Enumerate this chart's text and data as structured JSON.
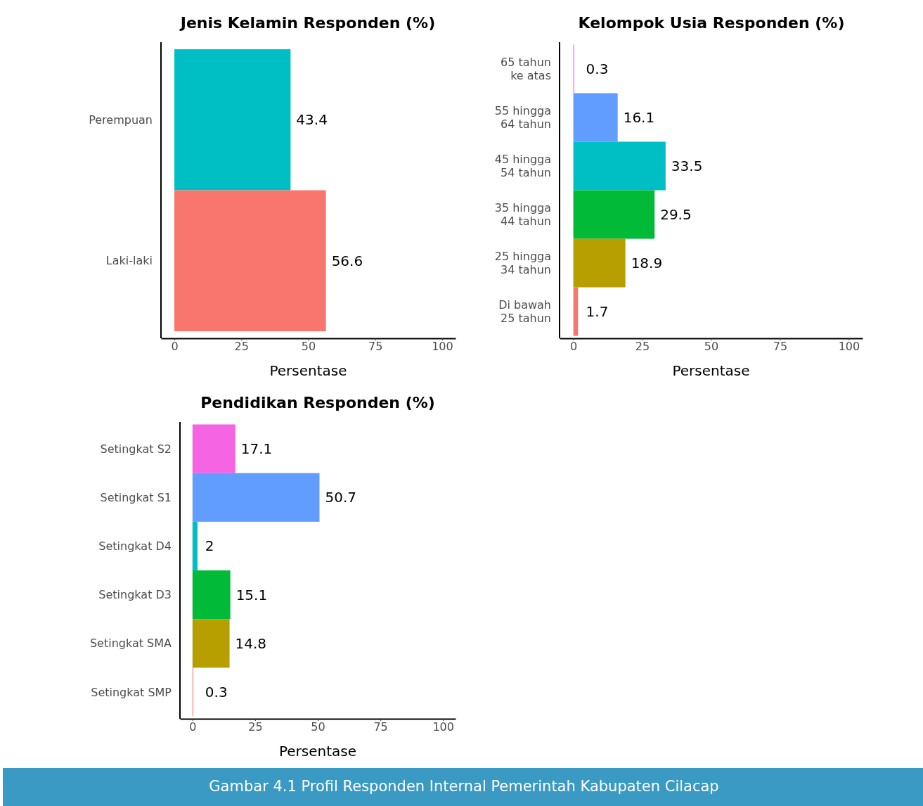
{
  "chart_data": [
    {
      "type": "bar",
      "orientation": "horizontal",
      "title": "Jenis Kelamin Responden (%)",
      "xlabel": "Persentase",
      "categories": [
        "Perempuan",
        "Laki-laki"
      ],
      "values": [
        43.4,
        56.6
      ],
      "colors": [
        "#00bfc4",
        "#f8766d"
      ],
      "xlim": [
        -5,
        105
      ],
      "xticks": [
        0,
        25,
        50,
        75,
        100
      ],
      "data_labels": true,
      "grid": false
    },
    {
      "type": "bar",
      "orientation": "horizontal",
      "title": "Kelompok Usia Responden (%)",
      "xlabel": "Persentase",
      "categories": [
        "65 tahun ke atas",
        "55 hingga 64 tahun",
        "45 hingga 54 tahun",
        "35 hingga 44 tahun",
        "25 hingga 34 tahun",
        "Di bawah 25 tahun"
      ],
      "values": [
        0.3,
        16.1,
        33.5,
        29.5,
        18.9,
        1.7
      ],
      "colors": [
        "#f564e3",
        "#619cff",
        "#00bfc4",
        "#00ba38",
        "#b79f00",
        "#f8766d"
      ],
      "xlim": [
        -5,
        105
      ],
      "xticks": [
        0,
        25,
        50,
        75,
        100
      ],
      "data_labels": true,
      "grid": false
    },
    {
      "type": "bar",
      "orientation": "horizontal",
      "title": "Pendidikan Responden (%)",
      "xlabel": "Persentase",
      "categories": [
        "Setingkat S2",
        "Setingkat S1",
        "Setingkat D4",
        "Setingkat D3",
        "Setingkat SMA",
        "Setingkat SMP"
      ],
      "values": [
        17.1,
        50.7,
        2,
        15.1,
        14.8,
        0.3
      ],
      "colors": [
        "#f564e3",
        "#619cff",
        "#00bfc4",
        "#00ba38",
        "#b79f00",
        "#f8766d"
      ],
      "xlim": [
        -5,
        105
      ],
      "xticks": [
        0,
        25,
        50,
        75,
        100
      ],
      "data_labels": true,
      "grid": false,
      "annotations": [
        "Gambar 4.1 Profil Responden Internal Pemerintah Kabupaten Cilacap"
      ]
    }
  ]
}
